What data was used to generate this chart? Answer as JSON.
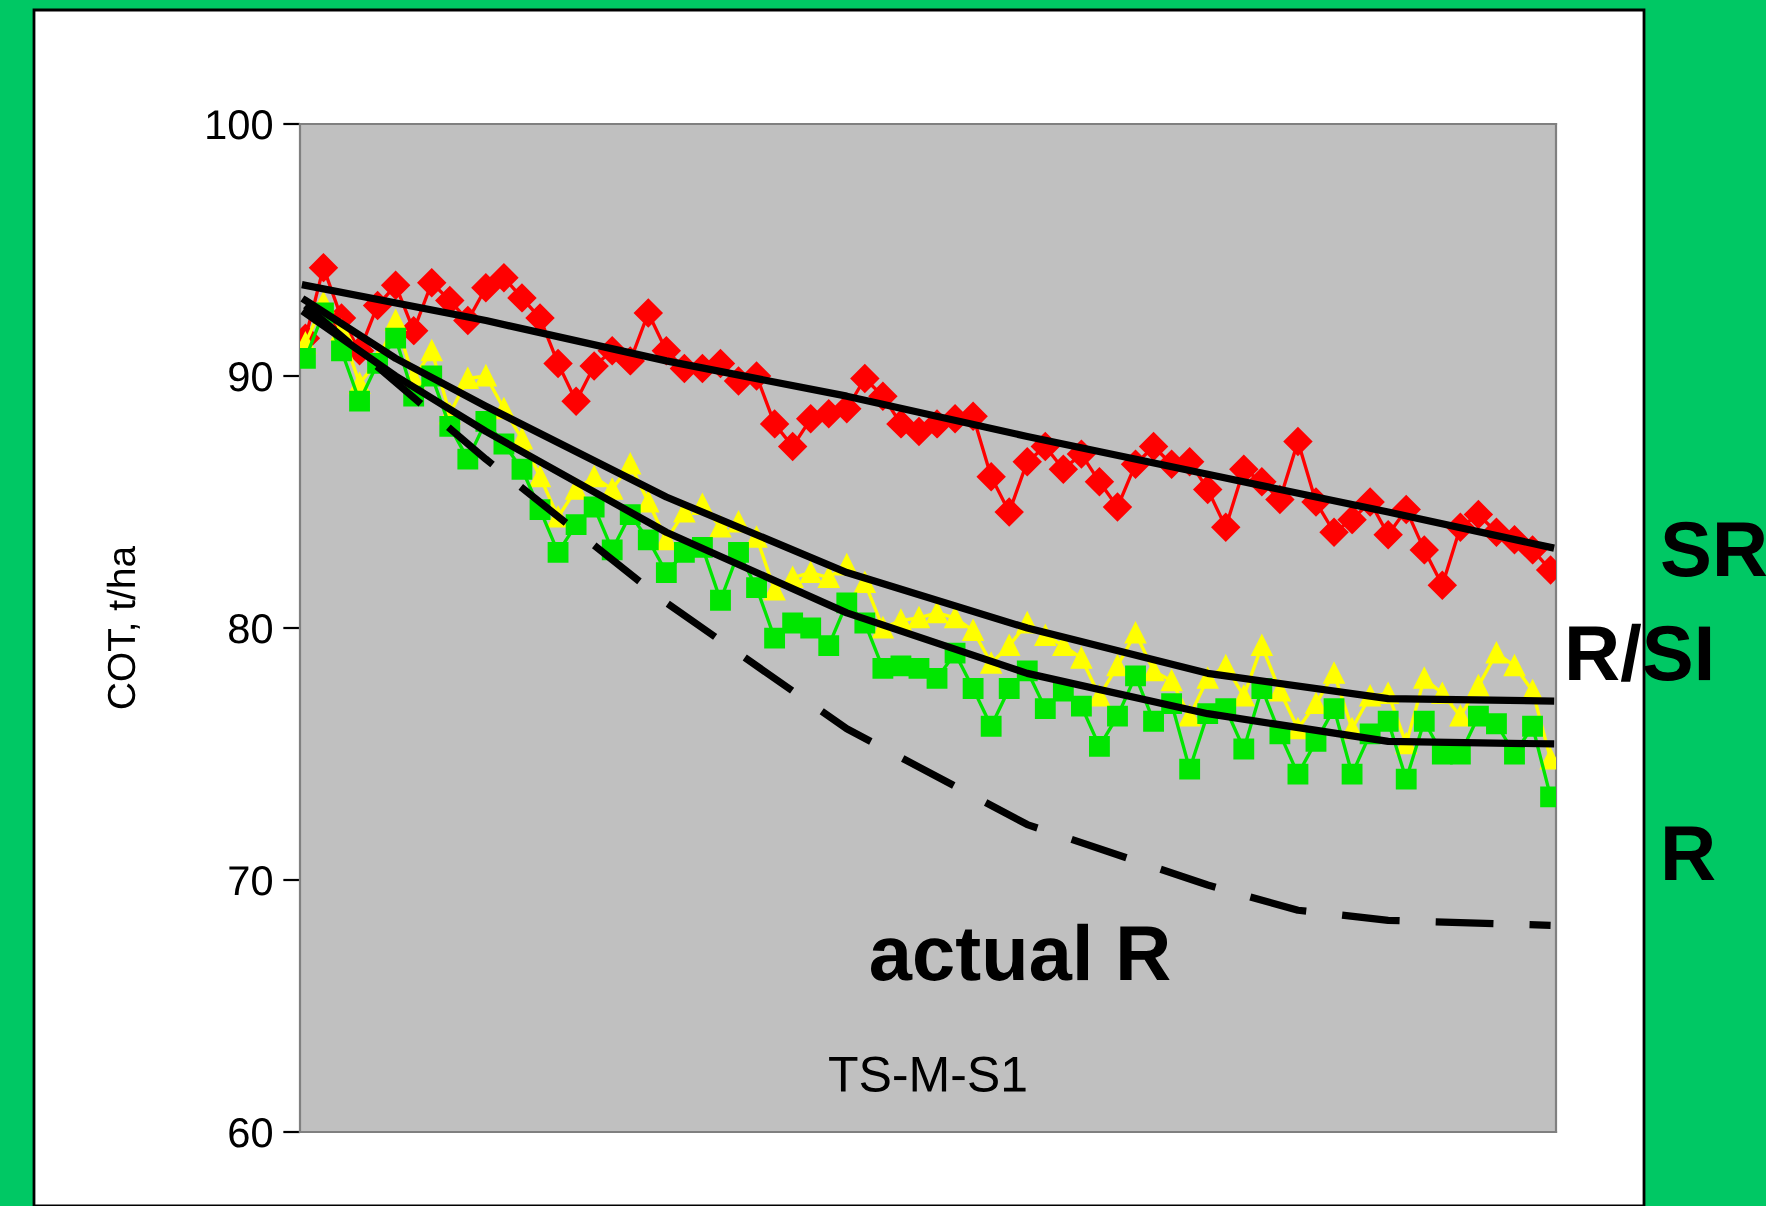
{
  "chart_data": {
    "type": "line",
    "ylabel": "COT, t/ha",
    "ylim": [
      60,
      100
    ],
    "yticks": [
      60,
      70,
      80,
      90,
      100
    ],
    "grid": false,
    "legend": false,
    "tick_labels": "y",
    "categories": [
      null,
      null,
      null,
      null,
      null,
      null,
      null,
      null,
      null,
      null,
      null,
      null,
      null,
      null,
      null,
      null,
      null,
      null,
      null,
      null,
      null,
      null,
      null,
      null,
      null,
      null,
      null,
      null,
      null,
      null,
      null,
      null,
      null,
      null,
      null,
      null,
      null,
      null,
      null,
      null,
      null,
      null,
      null,
      null,
      null,
      null,
      null,
      null,
      null,
      null,
      null,
      null,
      null,
      null,
      null,
      null,
      null,
      null,
      null,
      null,
      null,
      null,
      null,
      null,
      null,
      null,
      null,
      null,
      null,
      null
    ],
    "series": [
      {
        "name": "SR",
        "color": "#ff0000",
        "marker": "diamond",
        "values": [
          91.5,
          94.3,
          92.3,
          91.0,
          92.8,
          93.6,
          91.8,
          93.7,
          93.0,
          92.2,
          93.5,
          93.9,
          93.1,
          92.3,
          90.5,
          89.0,
          90.4,
          91.0,
          90.6,
          92.5,
          91.0,
          90.3,
          90.3,
          90.5,
          89.8,
          90.0,
          88.1,
          87.2,
          88.3,
          88.5,
          88.7,
          89.9,
          89.2,
          88.1,
          87.8,
          88.1,
          88.3,
          88.4,
          86.0,
          84.6,
          86.6,
          87.2,
          86.3,
          86.9,
          85.8,
          84.8,
          86.5,
          87.2,
          86.5,
          86.6,
          85.5,
          84.0,
          86.3,
          85.8,
          85.1,
          87.4,
          85.0,
          83.8,
          84.3,
          85.0,
          83.7,
          84.7,
          83.1,
          81.7,
          84.0,
          84.5,
          83.8,
          83.5,
          83.1,
          82.3
        ]
      },
      {
        "name": "R/SI",
        "color": "#ffff00",
        "marker": "triangle",
        "values": [
          91.3,
          92.9,
          91.8,
          89.7,
          90.6,
          92.2,
          89.9,
          91.0,
          88.5,
          89.9,
          90.0,
          88.7,
          87.5,
          86.0,
          84.4,
          85.5,
          86.0,
          85.5,
          86.5,
          85.0,
          83.5,
          84.6,
          84.9,
          84.0,
          84.2,
          83.6,
          81.5,
          82.0,
          82.2,
          82.0,
          82.5,
          81.8,
          80.0,
          80.3,
          80.4,
          80.6,
          80.4,
          79.9,
          78.6,
          79.3,
          80.2,
          79.7,
          79.3,
          78.8,
          77.3,
          78.5,
          79.8,
          78.3,
          77.9,
          76.5,
          78.0,
          78.5,
          77.3,
          79.3,
          77.5,
          76.0,
          77.0,
          78.2,
          76.0,
          77.3,
          77.4,
          75.4,
          78.0,
          77.4,
          76.5,
          77.7,
          79.0,
          78.5,
          77.5,
          74.8
        ]
      },
      {
        "name": "R",
        "color": "#00e600",
        "marker": "square",
        "values": [
          90.7,
          92.5,
          91.0,
          89.0,
          90.5,
          91.5,
          89.2,
          90.0,
          88.0,
          86.7,
          88.2,
          87.3,
          86.3,
          84.7,
          83.0,
          84.1,
          84.8,
          83.1,
          84.5,
          83.5,
          82.2,
          83.0,
          83.2,
          81.1,
          83.0,
          81.6,
          79.6,
          80.2,
          80.0,
          79.3,
          81.0,
          80.2,
          78.4,
          78.5,
          78.4,
          78.0,
          79.0,
          77.6,
          76.1,
          77.6,
          78.3,
          76.8,
          77.5,
          76.9,
          75.3,
          76.5,
          78.1,
          76.3,
          77.0,
          74.4,
          76.6,
          76.8,
          75.2,
          77.6,
          75.8,
          74.2,
          75.5,
          76.8,
          74.2,
          75.8,
          76.3,
          74.0,
          76.3,
          75.0,
          75.0,
          76.5,
          76.2,
          75.0,
          76.1,
          73.3
        ]
      },
      {
        "color": "#000000",
        "marker": "none",
        "values": [
          93.6,
          null,
          null,
          null,
          null,
          null,
          null,
          null,
          null,
          null,
          92.2,
          null,
          null,
          null,
          null,
          null,
          null,
          null,
          null,
          null,
          90.6,
          null,
          null,
          null,
          null,
          null,
          null,
          null,
          null,
          null,
          89.2,
          null,
          null,
          null,
          null,
          null,
          null,
          null,
          null,
          null,
          87.6,
          null,
          null,
          null,
          null,
          null,
          null,
          null,
          null,
          null,
          86.1,
          null,
          null,
          null,
          null,
          null,
          null,
          null,
          null,
          null,
          84.6,
          null,
          null,
          null,
          null,
          null,
          null,
          null,
          null,
          83.2
        ]
      },
      {
        "color": "#000000",
        "marker": "none",
        "values": [
          93.0,
          null,
          null,
          null,
          null,
          90.7,
          null,
          null,
          null,
          null,
          88.8,
          null,
          null,
          null,
          null,
          null,
          null,
          null,
          null,
          null,
          85.2,
          null,
          null,
          null,
          null,
          null,
          null,
          null,
          null,
          null,
          82.2,
          null,
          null,
          null,
          null,
          null,
          null,
          null,
          null,
          null,
          80.0,
          null,
          null,
          null,
          null,
          null,
          null,
          null,
          null,
          null,
          78.2,
          null,
          null,
          null,
          null,
          null,
          null,
          null,
          null,
          null,
          77.2,
          null,
          null,
          null,
          null,
          null,
          null,
          null,
          null,
          77.1
        ]
      },
      {
        "color": "#000000",
        "marker": "none",
        "values": [
          92.5,
          null,
          null,
          null,
          null,
          90.0,
          null,
          null,
          null,
          null,
          87.8,
          null,
          null,
          null,
          null,
          null,
          null,
          null,
          null,
          null,
          83.8,
          null,
          null,
          null,
          null,
          null,
          null,
          null,
          null,
          null,
          80.6,
          null,
          null,
          null,
          null,
          null,
          null,
          null,
          null,
          null,
          78.2,
          null,
          null,
          null,
          null,
          null,
          null,
          null,
          null,
          null,
          76.6,
          null,
          null,
          null,
          null,
          null,
          null,
          null,
          null,
          null,
          75.5,
          null,
          null,
          null,
          null,
          null,
          null,
          null,
          null,
          75.4
        ]
      },
      {
        "name": "actual R",
        "color": "#000000",
        "marker": "none",
        "line_style": "dashed",
        "values": [
          92.8,
          null,
          null,
          null,
          null,
          null,
          null,
          null,
          null,
          null,
          86.7,
          null,
          null,
          null,
          null,
          null,
          null,
          null,
          null,
          null,
          81.0,
          null,
          null,
          null,
          null,
          null,
          null,
          null,
          null,
          null,
          76.0,
          null,
          null,
          null,
          null,
          null,
          null,
          null,
          null,
          null,
          72.2,
          null,
          null,
          null,
          null,
          null,
          null,
          null,
          null,
          null,
          69.8,
          null,
          null,
          null,
          null,
          68.8,
          null,
          null,
          null,
          null,
          68.4,
          null,
          null,
          null,
          null,
          null,
          null,
          null,
          null,
          68.2
        ]
      }
    ],
    "annotations": [
      "TS-M-S1"
    ]
  }
}
